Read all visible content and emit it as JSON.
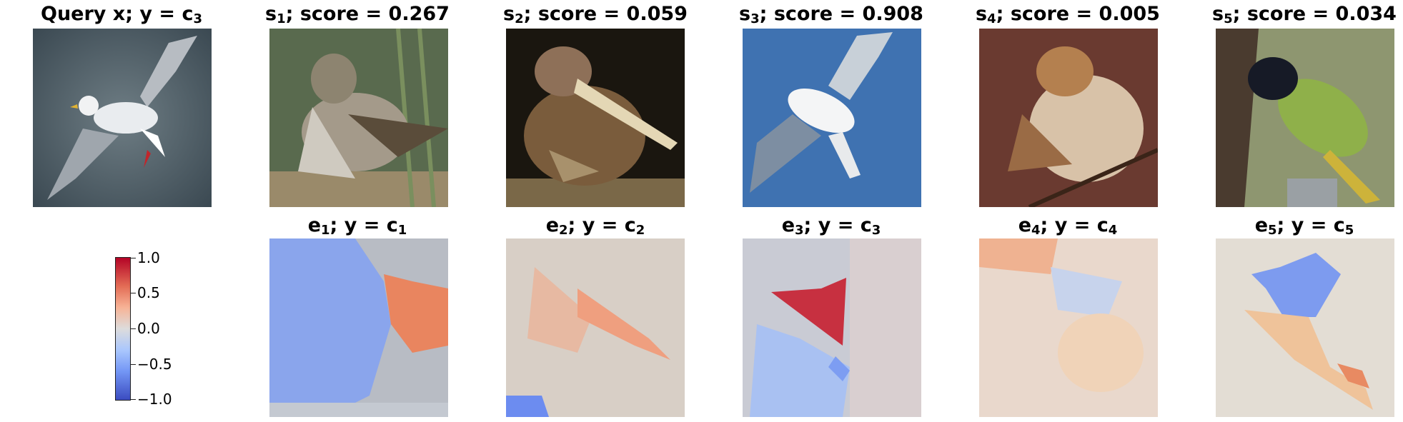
{
  "top_row": [
    {
      "prefix": "Query x; y = c",
      "sub": "3",
      "suffix": ""
    },
    {
      "prefix": "s",
      "sub": "1",
      "suffix": "; score = 0.267"
    },
    {
      "prefix": "s",
      "sub": "2",
      "suffix": "; score = 0.059"
    },
    {
      "prefix": "s",
      "sub": "3",
      "suffix": "; score = 0.908"
    },
    {
      "prefix": "s",
      "sub": "4",
      "suffix": "; score = 0.005"
    },
    {
      "prefix": "s",
      "sub": "5",
      "suffix": "; score = 0.034"
    }
  ],
  "bottom_row": [
    {
      "prefix": "e",
      "sub": "1",
      "mid": "; y = c",
      "sub2": "1"
    },
    {
      "prefix": "e",
      "sub": "2",
      "mid": "; y = c",
      "sub2": "2"
    },
    {
      "prefix": "e",
      "sub": "3",
      "mid": "; y = c",
      "sub2": "3"
    },
    {
      "prefix": "e",
      "sub": "4",
      "mid": "; y = c",
      "sub2": "4"
    },
    {
      "prefix": "e",
      "sub": "5",
      "mid": "; y = c",
      "sub2": "5"
    }
  ],
  "colorbar": {
    "ticks": [
      "1.0",
      "0.5",
      "0.0",
      "−0.5",
      "−1.0"
    ],
    "colormap": "coolwarm",
    "range": [
      -1.0,
      1.0
    ]
  },
  "colors": {
    "positive": "#b40426",
    "neutral": "#dddcdc",
    "negative": "#3b4cc0"
  }
}
